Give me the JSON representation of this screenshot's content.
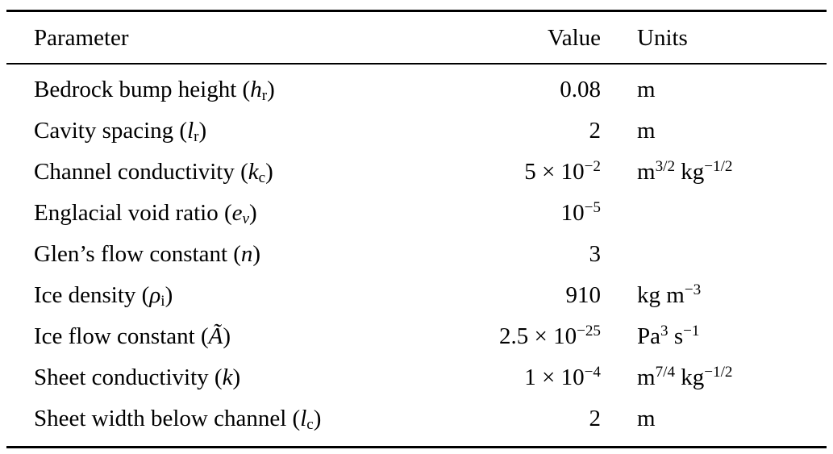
{
  "table": {
    "headers": [
      "Parameter",
      "Value",
      "Units"
    ],
    "rows": [
      {
        "parameter": "Bedrock bump height (*h*_{r})",
        "value": "0.08",
        "units": "m"
      },
      {
        "parameter": "Cavity spacing (*l*_{r})",
        "value": "2",
        "units": "m"
      },
      {
        "parameter": "Channel conductivity (*k*_{c})",
        "value": "5 × 10^{−2}",
        "units": "m^{3/2} kg^{−1/2}"
      },
      {
        "parameter": "Englacial void ratio (*e*_{*ν*})",
        "value": "10^{−5}",
        "units": ""
      },
      {
        "parameter": "Glen’s flow constant (*n*)",
        "value": "3",
        "units": ""
      },
      {
        "parameter": "Ice density (*ρ*_{i})",
        "value": "910",
        "units": "kg m^{−3}"
      },
      {
        "parameter": "Ice flow constant (*Ã*)",
        "value": "2.5 × 10^{−25}",
        "units": "Pa^{3} s^{−1}"
      },
      {
        "parameter": "Sheet conductivity (*k*)",
        "value": "1 × 10^{−4}",
        "units": "m^{7/4} kg^{−1/2}"
      },
      {
        "parameter": "Sheet width below channel (*l*_{c})",
        "value": "2",
        "units": "m"
      }
    ]
  }
}
